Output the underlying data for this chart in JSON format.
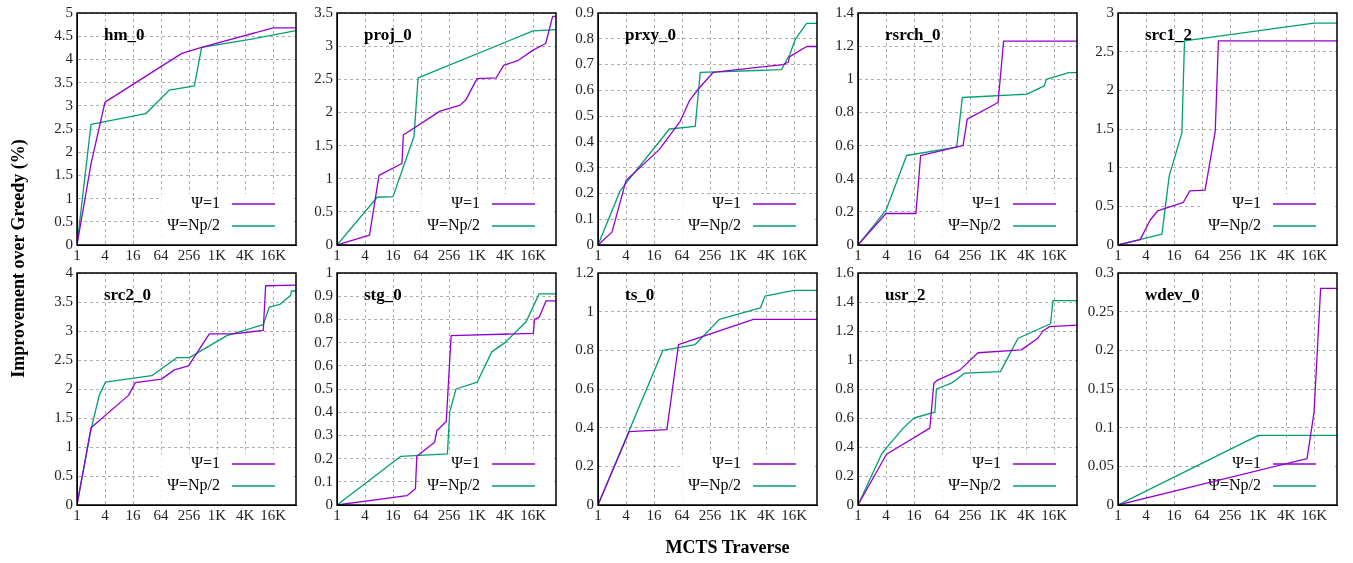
{
  "chart_data": [
    {
      "type": "line",
      "title": "hm_0",
      "ylabel": "Improvement over Greedy (%)",
      "xlim": [
        1,
        51000
      ],
      "xticks": [
        1,
        4,
        16,
        64,
        256,
        {
          "value": 1024,
          "label": "1K"
        },
        {
          "value": 4096,
          "label": "4K"
        },
        {
          "value": 16384,
          "label": "16K"
        }
      ],
      "log": "x",
      "ylim": [
        0,
        5
      ],
      "yticks": [
        0,
        0.5,
        1,
        1.5,
        2,
        2.5,
        3,
        3.5,
        4,
        4.5,
        5
      ],
      "grid": true,
      "legend": "bottom right",
      "series": [
        {
          "name": "Ψ=1",
          "color": "#9400d3",
          "x": [
            1,
            2,
            4,
            179,
            478,
            16384,
            51000
          ],
          "values": [
            0,
            1.75,
            3.08,
            4.13,
            4.26,
            4.68,
            4.68
          ]
        },
        {
          "name": "Ψ=Np/2",
          "color": "#009e73",
          "x": [
            1,
            2,
            30,
            97,
            333,
            478,
            5220,
            51000
          ],
          "values": [
            0,
            2.6,
            2.83,
            3.34,
            3.43,
            4.26,
            4.43,
            4.62
          ]
        }
      ]
    },
    {
      "type": "line",
      "title": "proj_0",
      "xlim": [
        1,
        51000
      ],
      "xticks": [
        1,
        4,
        16,
        64,
        256,
        {
          "value": 1024,
          "label": "1K"
        },
        {
          "value": 4096,
          "label": "4K"
        },
        {
          "value": 16384,
          "label": "16K"
        }
      ],
      "log": "x",
      "ylim": [
        0,
        3.5
      ],
      "yticks": [
        0,
        0.5,
        1,
        1.5,
        2,
        2.5,
        3,
        3.5
      ],
      "grid": true,
      "legend": "bottom right",
      "series": [
        {
          "name": "Ψ=1",
          "color": "#9400d3",
          "x": [
            1,
            5,
            8,
            24.9,
            26.7,
            164,
            446,
            588,
            1024,
            2628,
            3822,
            7643,
            16384,
            30570,
            43240,
            51000
          ],
          "values": [
            0,
            0.15,
            1.05,
            1.23,
            1.66,
            2.02,
            2.11,
            2.19,
            2.51,
            2.52,
            2.71,
            2.78,
            2.94,
            3.04,
            3.45,
            3.45
          ]
        },
        {
          "name": "Ψ=Np/2",
          "color": "#009e73",
          "x": [
            1,
            7.3,
            16,
            45.3,
            55.3,
            16384,
            51000
          ],
          "values": [
            0,
            0.72,
            0.73,
            1.64,
            2.52,
            3.23,
            3.25
          ]
        }
      ]
    },
    {
      "type": "line",
      "title": "prxy_0",
      "xlim": [
        1,
        51000
      ],
      "xticks": [
        1,
        4,
        16,
        64,
        256,
        {
          "value": 1024,
          "label": "1K"
        },
        {
          "value": 4096,
          "label": "4K"
        },
        {
          "value": 16384,
          "label": "16K"
        }
      ],
      "log": "x",
      "ylim": [
        0,
        0.9
      ],
      "yticks": [
        0,
        0.1,
        0.2,
        0.3,
        0.4,
        0.5,
        0.6,
        0.7,
        0.8,
        0.9
      ],
      "grid": true,
      "legend": "bottom right",
      "series": [
        {
          "name": "Ψ=1",
          "color": "#9400d3",
          "x": [
            1,
            2,
            4,
            20.7,
            58.5,
            92.4,
            151,
            302,
            9610,
            12400,
            13000,
            30600,
            51000
          ],
          "values": [
            0,
            0.05,
            0.25,
            0.37,
            0.48,
            0.56,
            0.61,
            0.67,
            0.7,
            0.71,
            0.73,
            0.77,
            0.77
          ]
        },
        {
          "name": "Ψ=Np/2",
          "color": "#009e73",
          "x": [
            1,
            3,
            4,
            34.3,
            123,
            158,
            8780,
            13300,
            17600,
            30600,
            51000
          ],
          "values": [
            0,
            0.21,
            0.24,
            0.45,
            0.46,
            0.67,
            0.68,
            0.74,
            0.8,
            0.86,
            0.86
          ]
        }
      ]
    },
    {
      "type": "line",
      "title": "rsrch_0",
      "xlim": [
        1,
        51000
      ],
      "xticks": [
        1,
        4,
        16,
        64,
        256,
        {
          "value": 1024,
          "label": "1K"
        },
        {
          "value": 4096,
          "label": "4K"
        },
        {
          "value": 16384,
          "label": "16K"
        }
      ],
      "log": "x",
      "ylim": [
        0,
        1.4
      ],
      "yticks": [
        0,
        0.2,
        0.4,
        0.6,
        0.8,
        1,
        1.2,
        1.4
      ],
      "grid": true,
      "legend": "bottom right",
      "series": [
        {
          "name": "Ψ=1",
          "color": "#9400d3",
          "x": [
            1,
            4,
            17.6,
            22.2,
            128,
            181,
            223,
            1024,
            1351,
            51000
          ],
          "values": [
            0,
            0.19,
            0.19,
            0.54,
            0.59,
            0.6,
            0.76,
            0.86,
            1.23,
            1.23
          ]
        },
        {
          "name": "Ψ=Np/2",
          "color": "#009e73",
          "x": [
            1,
            4,
            11.1,
            132,
            175,
            4300,
            10086,
            11190,
            33900,
            51000
          ],
          "values": [
            0,
            0.21,
            0.54,
            0.59,
            0.89,
            0.91,
            0.96,
            1.0,
            1.04,
            1.04
          ]
        }
      ]
    },
    {
      "type": "line",
      "title": "src1_2",
      "xlim": [
        1,
        51000
      ],
      "xticks": [
        1,
        4,
        16,
        64,
        256,
        {
          "value": 1024,
          "label": "1K"
        },
        {
          "value": 4096,
          "label": "4K"
        },
        {
          "value": 16384,
          "label": "16K"
        }
      ],
      "log": "x",
      "ylim": [
        0,
        3
      ],
      "yticks": [
        0,
        0.5,
        1,
        1.5,
        2,
        2.5,
        3
      ],
      "grid": true,
      "legend": "bottom right",
      "series": [
        {
          "name": "Ψ=1",
          "color": "#9400d3",
          "x": [
            1,
            3,
            4.9,
            7.1,
            25.3,
            35,
            74.5,
            123,
            144,
            51000
          ],
          "values": [
            0,
            0.07,
            0.32,
            0.44,
            0.55,
            0.7,
            0.71,
            1.47,
            2.64,
            2.64
          ]
        },
        {
          "name": "Ψ=Np/2",
          "color": "#009e73",
          "x": [
            1,
            8.8,
            12.6,
            23.6,
            26.9,
            16384,
            51000
          ],
          "values": [
            0,
            0.14,
            0.89,
            1.45,
            2.64,
            2.87,
            2.87
          ]
        }
      ]
    },
    {
      "type": "line",
      "title": "src2_0",
      "xlim": [
        1,
        51000
      ],
      "xticks": [
        1,
        4,
        16,
        64,
        256,
        {
          "value": 1024,
          "label": "1K"
        },
        {
          "value": 4096,
          "label": "4K"
        },
        {
          "value": 16384,
          "label": "16K"
        }
      ],
      "log": "x",
      "ylim": [
        0,
        4
      ],
      "yticks": [
        0,
        0.5,
        1,
        1.5,
        2,
        2.5,
        3,
        3.5,
        4
      ],
      "grid": true,
      "legend": "bottom right",
      "series": [
        {
          "name": "Ψ=1",
          "color": "#9400d3",
          "x": [
            1,
            2,
            12.8,
            17.9,
            65.4,
            124,
            249,
            700,
            2288,
            10086,
            11350,
            51000
          ],
          "values": [
            0,
            1.33,
            1.89,
            2.11,
            2.17,
            2.33,
            2.4,
            2.95,
            2.95,
            3.01,
            3.78,
            3.79
          ]
        },
        {
          "name": "Ψ=Np/2",
          "color": "#009e73",
          "x": [
            1,
            2,
            3,
            4.1,
            40.5,
            140,
            261,
            1664,
            10086,
            13590,
            23170,
            38960,
            40900,
            51000
          ],
          "values": [
            0,
            1.3,
            1.89,
            2.12,
            2.23,
            2.54,
            2.54,
            2.92,
            3.11,
            3.41,
            3.46,
            3.61,
            3.69,
            3.69
          ]
        }
      ]
    },
    {
      "type": "line",
      "title": "stg_0",
      "xlim": [
        1,
        51000
      ],
      "xticks": [
        1,
        4,
        16,
        64,
        256,
        {
          "value": 1024,
          "label": "1K"
        },
        {
          "value": 4096,
          "label": "4K"
        },
        {
          "value": 16384,
          "label": "16K"
        }
      ],
      "log": "x",
      "ylim": [
        0,
        1
      ],
      "yticks": [
        0,
        0.1,
        0.2,
        0.3,
        0.4,
        0.5,
        0.6,
        0.7,
        0.8,
        0.9,
        1
      ],
      "grid": true,
      "legend": "bottom right",
      "series": [
        {
          "name": "Ψ=1",
          "color": "#9400d3",
          "x": [
            1,
            31.8,
            48.5,
            52,
            125,
            140,
            223,
            284,
            16600,
            17600,
            22400,
            31200,
            51000
          ],
          "values": [
            0,
            0.04,
            0.07,
            0.21,
            0.27,
            0.32,
            0.36,
            0.73,
            0.74,
            0.8,
            0.81,
            0.88,
            0.88
          ]
        },
        {
          "name": "Ψ=Np/2",
          "color": "#009e73",
          "x": [
            1,
            23.6,
            236,
            265,
            362,
            1038,
            2120,
            4096,
            11600,
            22100,
            51000
          ],
          "values": [
            0,
            0.21,
            0.22,
            0.4,
            0.5,
            0.53,
            0.66,
            0.7,
            0.79,
            0.91,
            0.91
          ]
        }
      ]
    },
    {
      "type": "line",
      "title": "ts_0",
      "xlabel": "MCTS Traverse",
      "xlim": [
        1,
        51000
      ],
      "xticks": [
        1,
        4,
        16,
        64,
        256,
        {
          "value": 1024,
          "label": "1K"
        },
        {
          "value": 4096,
          "label": "4K"
        },
        {
          "value": 16384,
          "label": "16K"
        }
      ],
      "log": "x",
      "ylim": [
        0,
        1.2
      ],
      "yticks": [
        0,
        0.2,
        0.4,
        0.6,
        0.8,
        1,
        1.2
      ],
      "grid": true,
      "legend": "bottom right",
      "series": [
        {
          "name": "Ψ=1",
          "color": "#9400d3",
          "x": [
            1,
            4.7,
            30.3,
            53.8,
            2195,
            51000
          ],
          "values": [
            0,
            0.38,
            0.39,
            0.83,
            0.96,
            0.96
          ]
        },
        {
          "name": "Ψ=Np/2",
          "color": "#009e73",
          "x": [
            1,
            24.8,
            123,
            407,
            3104,
            3875,
            16384,
            51000
          ],
          "values": [
            0,
            0.8,
            0.83,
            0.96,
            1.02,
            1.08,
            1.11,
            1.11
          ]
        }
      ]
    },
    {
      "type": "line",
      "title": "usr_2",
      "xlim": [
        1,
        51000
      ],
      "xticks": [
        1,
        4,
        16,
        64,
        256,
        {
          "value": 1024,
          "label": "1K"
        },
        {
          "value": 4096,
          "label": "4K"
        },
        {
          "value": 16384,
          "label": "16K"
        }
      ],
      "log": "x",
      "ylim": [
        0,
        1.6
      ],
      "yticks": [
        0,
        0.2,
        0.4,
        0.6,
        0.8,
        1,
        1.2,
        1.4,
        1.6
      ],
      "grid": true,
      "legend": "bottom right",
      "series": [
        {
          "name": "Ψ=1",
          "color": "#9400d3",
          "x": [
            1,
            4.1,
            35,
            42.8,
            50.2,
            154,
            380,
            3236,
            7382,
            9410,
            13120,
            51000
          ],
          "values": [
            0,
            0.35,
            0.53,
            0.84,
            0.86,
            0.93,
            1.05,
            1.07,
            1.15,
            1.2,
            1.23,
            1.24
          ]
        },
        {
          "name": "Ψ=Np/2",
          "color": "#009e73",
          "x": [
            1,
            3.2,
            4,
            9.4,
            16,
            44.9,
            48.5,
            102,
            198,
            1152,
            2759,
            13780,
            15500,
            51000
          ],
          "values": [
            0,
            0.35,
            0.39,
            0.53,
            0.6,
            0.64,
            0.8,
            0.84,
            0.91,
            0.92,
            1.15,
            1.25,
            1.41,
            1.41
          ]
        }
      ]
    },
    {
      "type": "line",
      "title": "wdev_0",
      "xlim": [
        1,
        51000
      ],
      "xticks": [
        1,
        4,
        16,
        64,
        256,
        {
          "value": 1024,
          "label": "1K"
        },
        {
          "value": 4096,
          "label": "4K"
        },
        {
          "value": 16384,
          "label": "16K"
        }
      ],
      "log": "x",
      "ylim": [
        0,
        0.3
      ],
      "yticks": [
        0,
        0.05,
        0.1,
        0.15,
        0.2,
        0.25,
        0.3
      ],
      "grid": true,
      "legend": "bottom right",
      "series": [
        {
          "name": "Ψ=1",
          "color": "#9400d3",
          "x": [
            1,
            11585,
            16384,
            22680,
            51000
          ],
          "values": [
            0,
            0.06,
            0.12,
            0.28,
            0.28
          ]
        },
        {
          "name": "Ψ=Np/2",
          "color": "#009e73",
          "x": [
            1,
            1038,
            51000
          ],
          "values": [
            0,
            0.09,
            0.09
          ]
        }
      ]
    }
  ]
}
